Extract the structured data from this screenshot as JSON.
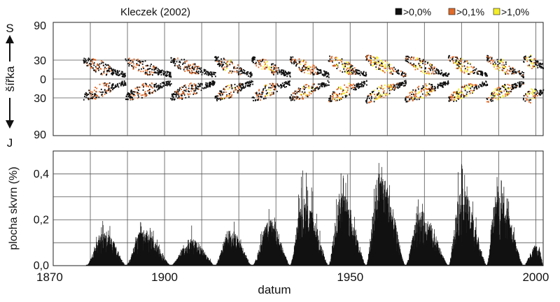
{
  "figure": {
    "source_label": "Kleczek (2002)",
    "legend": [
      {
        "label": ">0,0%",
        "color": "#111111"
      },
      {
        "label": ">0,1%",
        "color": "#e06b2a"
      },
      {
        "label": ">1,0%",
        "color": "#f4ee2a"
      }
    ],
    "x_label": "datum",
    "colors": {
      "low": "#111111",
      "mid": "#e06b2a",
      "high": "#f4ee2a",
      "grid": "#555555",
      "frame": "#222222"
    }
  },
  "chart_data": [
    {
      "type": "heatmap",
      "xlabel": "",
      "ylabel": "šířka",
      "north_label": "S",
      "south_label": "J",
      "xlim": [
        1870,
        2002
      ],
      "ylim": [
        -90,
        90
      ],
      "ytick_labels": [
        "90",
        "30",
        "0",
        "30",
        "90"
      ],
      "ytick_values": [
        90,
        30,
        0,
        -30,
        -90
      ],
      "x_grid_step": 10,
      "cycles": [
        {
          "start": 1878,
          "end": 1889.5,
          "start_lat": 30,
          "end_lat": 6,
          "peak": 0.7
        },
        {
          "start": 1889.3,
          "end": 1901.7,
          "start_lat": 30,
          "end_lat": 6,
          "peak": 0.7
        },
        {
          "start": 1901.5,
          "end": 1913.6,
          "start_lat": 30,
          "end_lat": 6,
          "peak": 0.6
        },
        {
          "start": 1913.4,
          "end": 1923.6,
          "start_lat": 32,
          "end_lat": 6,
          "peak": 0.8
        },
        {
          "start": 1923.4,
          "end": 1933.8,
          "start_lat": 32,
          "end_lat": 6,
          "peak": 0.85
        },
        {
          "start": 1933.6,
          "end": 1944.2,
          "start_lat": 32,
          "end_lat": 6,
          "peak": 1.0
        },
        {
          "start": 1944,
          "end": 1954.3,
          "start_lat": 33,
          "end_lat": 6,
          "peak": 1.1
        },
        {
          "start": 1954.1,
          "end": 1964.9,
          "start_lat": 35,
          "end_lat": 6,
          "peak": 1.3
        },
        {
          "start": 1964.7,
          "end": 1976.5,
          "start_lat": 33,
          "end_lat": 6,
          "peak": 1.1
        },
        {
          "start": 1976.3,
          "end": 1986.8,
          "start_lat": 34,
          "end_lat": 6,
          "peak": 1.2
        },
        {
          "start": 1986.6,
          "end": 1996.7,
          "start_lat": 34,
          "end_lat": 6,
          "peak": 1.2
        },
        {
          "start": 1996.5,
          "end": 2002,
          "start_lat": 32,
          "end_lat": 20,
          "peak": 1.0
        }
      ]
    },
    {
      "type": "area",
      "xlabel": "datum",
      "ylabel": "plocha skvrn (%)",
      "xlim": [
        1870,
        2002
      ],
      "ylim": [
        0,
        0.5
      ],
      "xtick_labels": [
        "1870",
        "1900",
        "1950",
        "2000"
      ],
      "xtick_values": [
        1870,
        1900,
        1950,
        2000
      ],
      "ytick_labels": [
        "0,0",
        "0,2",
        "0,4"
      ],
      "ytick_values": [
        0,
        0.2,
        0.4
      ],
      "y_grid_step": 0.1,
      "x_grid_step": 10,
      "cycles": [
        {
          "min_year": 1878.9,
          "max_year": 1883.9,
          "end_year": 1889.6,
          "peak": 0.15,
          "spike": 0.2
        },
        {
          "min_year": 1889.6,
          "max_year": 1894.1,
          "end_year": 1901.7,
          "peak": 0.16,
          "spike": 0.21
        },
        {
          "min_year": 1901.7,
          "max_year": 1907,
          "end_year": 1913.6,
          "peak": 0.12,
          "spike": 0.18
        },
        {
          "min_year": 1913.6,
          "max_year": 1917.6,
          "end_year": 1923.6,
          "peak": 0.16,
          "spike": 0.22
        },
        {
          "min_year": 1923.6,
          "max_year": 1928.4,
          "end_year": 1933.8,
          "peak": 0.2,
          "spike": 0.27
        },
        {
          "min_year": 1933.8,
          "max_year": 1937.4,
          "end_year": 1944.2,
          "peak": 0.3,
          "spike": 0.42
        },
        {
          "min_year": 1944.2,
          "max_year": 1947.5,
          "end_year": 1954.3,
          "peak": 0.33,
          "spike": 0.47
        },
        {
          "min_year": 1954.3,
          "max_year": 1957.9,
          "end_year": 1964.9,
          "peak": 0.42,
          "spike": 0.5
        },
        {
          "min_year": 1964.9,
          "max_year": 1968.9,
          "end_year": 1976.5,
          "peak": 0.24,
          "spike": 0.3
        },
        {
          "min_year": 1976.5,
          "max_year": 1979.9,
          "end_year": 1986.8,
          "peak": 0.34,
          "spike": 0.46
        },
        {
          "min_year": 1986.8,
          "max_year": 1989.6,
          "end_year": 1996.7,
          "peak": 0.33,
          "spike": 0.41
        },
        {
          "min_year": 1996.7,
          "max_year": 2000.5,
          "end_year": 2002,
          "peak": 0.1,
          "spike": 0.12
        }
      ]
    }
  ]
}
